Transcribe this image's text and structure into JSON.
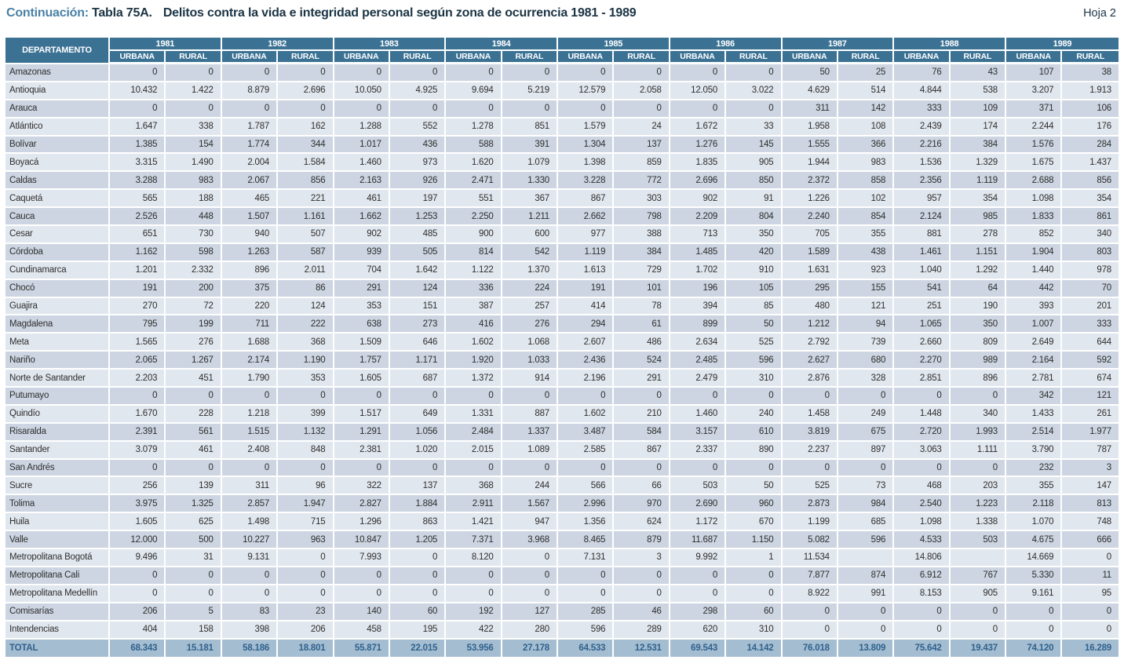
{
  "title": {
    "continuation_label": "Continuación:",
    "table_label": "Tabla 75A.",
    "title_text": "Delitos contra la vida e integridad personal según zona de ocurrencia 1981 - 1989",
    "page_label": "Hoja 2"
  },
  "table": {
    "department_header": "DEPARTAMENTO",
    "years": [
      "1981",
      "1982",
      "1983",
      "1984",
      "1985",
      "1986",
      "1987",
      "1988",
      "1989"
    ],
    "subheaders": [
      "URBANA",
      "RURAL"
    ],
    "rows": [
      {
        "name": "Amazonas",
        "values": [
          "0",
          "0",
          "0",
          "0",
          "0",
          "0",
          "0",
          "0",
          "0",
          "0",
          "0",
          "0",
          "50",
          "25",
          "76",
          "43",
          "107",
          "38"
        ]
      },
      {
        "name": "Antioquia",
        "values": [
          "10.432",
          "1.422",
          "8.879",
          "2.696",
          "10.050",
          "4.925",
          "9.694",
          "5.219",
          "12.579",
          "2.058",
          "12.050",
          "3.022",
          "4.629",
          "514",
          "4.844",
          "538",
          "3.207",
          "1.913"
        ]
      },
      {
        "name": "Arauca",
        "values": [
          "0",
          "0",
          "0",
          "0",
          "0",
          "0",
          "0",
          "0",
          "0",
          "0",
          "0",
          "0",
          "311",
          "142",
          "333",
          "109",
          "371",
          "106"
        ]
      },
      {
        "name": "Atlántico",
        "values": [
          "1.647",
          "338",
          "1.787",
          "162",
          "1.288",
          "552",
          "1.278",
          "851",
          "1.579",
          "24",
          "1.672",
          "33",
          "1.958",
          "108",
          "2.439",
          "174",
          "2.244",
          "176"
        ]
      },
      {
        "name": "Bolívar",
        "values": [
          "1.385",
          "154",
          "1.774",
          "344",
          "1.017",
          "436",
          "588",
          "391",
          "1.304",
          "137",
          "1.276",
          "145",
          "1.555",
          "366",
          "2.216",
          "384",
          "1.576",
          "284"
        ]
      },
      {
        "name": "Boyacá",
        "values": [
          "3.315",
          "1.490",
          "2.004",
          "1.584",
          "1.460",
          "973",
          "1.620",
          "1.079",
          "1.398",
          "859",
          "1.835",
          "905",
          "1.944",
          "983",
          "1.536",
          "1.329",
          "1.675",
          "1.437"
        ]
      },
      {
        "name": "Caldas",
        "values": [
          "3.288",
          "983",
          "2.067",
          "856",
          "2.163",
          "926",
          "2.471",
          "1.330",
          "3.228",
          "772",
          "2.696",
          "850",
          "2.372",
          "858",
          "2.356",
          "1.119",
          "2.688",
          "856"
        ]
      },
      {
        "name": "Caquetá",
        "values": [
          "565",
          "188",
          "465",
          "221",
          "461",
          "197",
          "551",
          "367",
          "867",
          "303",
          "902",
          "91",
          "1.226",
          "102",
          "957",
          "354",
          "1.098",
          "354"
        ]
      },
      {
        "name": "Cauca",
        "values": [
          "2.526",
          "448",
          "1.507",
          "1.161",
          "1.662",
          "1.253",
          "2.250",
          "1.211",
          "2.662",
          "798",
          "2.209",
          "804",
          "2.240",
          "854",
          "2.124",
          "985",
          "1.833",
          "861"
        ]
      },
      {
        "name": "Cesar",
        "values": [
          "651",
          "730",
          "940",
          "507",
          "902",
          "485",
          "900",
          "600",
          "977",
          "388",
          "713",
          "350",
          "705",
          "355",
          "881",
          "278",
          "852",
          "340"
        ]
      },
      {
        "name": "Córdoba",
        "values": [
          "1.162",
          "598",
          "1.263",
          "587",
          "939",
          "505",
          "814",
          "542",
          "1.119",
          "384",
          "1.485",
          "420",
          "1.589",
          "438",
          "1.461",
          "1.151",
          "1.904",
          "803"
        ]
      },
      {
        "name": "Cundinamarca",
        "values": [
          "1.201",
          "2.332",
          "896",
          "2.011",
          "704",
          "1.642",
          "1.122",
          "1.370",
          "1.613",
          "729",
          "1.702",
          "910",
          "1.631",
          "923",
          "1.040",
          "1.292",
          "1.440",
          "978"
        ]
      },
      {
        "name": "Chocó",
        "values": [
          "191",
          "200",
          "375",
          "86",
          "291",
          "124",
          "336",
          "224",
          "191",
          "101",
          "196",
          "105",
          "295",
          "155",
          "541",
          "64",
          "442",
          "70"
        ]
      },
      {
        "name": "Guajira",
        "values": [
          "270",
          "72",
          "220",
          "124",
          "353",
          "151",
          "387",
          "257",
          "414",
          "78",
          "394",
          "85",
          "480",
          "121",
          "251",
          "190",
          "393",
          "201"
        ]
      },
      {
        "name": "Magdalena",
        "values": [
          "795",
          "199",
          "711",
          "222",
          "638",
          "273",
          "416",
          "276",
          "294",
          "61",
          "899",
          "50",
          "1.212",
          "94",
          "1.065",
          "350",
          "1.007",
          "333"
        ]
      },
      {
        "name": "Meta",
        "values": [
          "1.565",
          "276",
          "1.688",
          "368",
          "1.509",
          "646",
          "1.602",
          "1.068",
          "2.607",
          "486",
          "2.634",
          "525",
          "2.792",
          "739",
          "2.660",
          "809",
          "2.649",
          "644"
        ]
      },
      {
        "name": "Nariño",
        "values": [
          "2.065",
          "1.267",
          "2.174",
          "1.190",
          "1.757",
          "1.171",
          "1.920",
          "1.033",
          "2.436",
          "524",
          "2.485",
          "596",
          "2.627",
          "680",
          "2.270",
          "989",
          "2.164",
          "592"
        ]
      },
      {
        "name": "Norte de Santander",
        "values": [
          "2.203",
          "451",
          "1.790",
          "353",
          "1.605",
          "687",
          "1.372",
          "914",
          "2.196",
          "291",
          "2.479",
          "310",
          "2.876",
          "328",
          "2.851",
          "896",
          "2.781",
          "674"
        ]
      },
      {
        "name": "Putumayo",
        "values": [
          "0",
          "0",
          "0",
          "0",
          "0",
          "0",
          "0",
          "0",
          "0",
          "0",
          "0",
          "0",
          "0",
          "0",
          "0",
          "0",
          "342",
          "121"
        ]
      },
      {
        "name": "Quindío",
        "values": [
          "1.670",
          "228",
          "1.218",
          "399",
          "1.517",
          "649",
          "1.331",
          "887",
          "1.602",
          "210",
          "1.460",
          "240",
          "1.458",
          "249",
          "1.448",
          "340",
          "1.433",
          "261"
        ]
      },
      {
        "name": "Risaralda",
        "values": [
          "2.391",
          "561",
          "1.515",
          "1.132",
          "1.291",
          "1.056",
          "2.484",
          "1.337",
          "3.487",
          "584",
          "3.157",
          "610",
          "3.819",
          "675",
          "2.720",
          "1.993",
          "2.514",
          "1.977"
        ]
      },
      {
        "name": "Santander",
        "values": [
          "3.079",
          "461",
          "2.408",
          "848",
          "2.381",
          "1.020",
          "2.015",
          "1.089",
          "2.585",
          "867",
          "2.337",
          "890",
          "2.237",
          "897",
          "3.063",
          "1.111",
          "3.790",
          "787"
        ]
      },
      {
        "name": "San Andrés",
        "values": [
          "0",
          "0",
          "0",
          "0",
          "0",
          "0",
          "0",
          "0",
          "0",
          "0",
          "0",
          "0",
          "0",
          "0",
          "0",
          "0",
          "232",
          "3"
        ]
      },
      {
        "name": "Sucre",
        "values": [
          "256",
          "139",
          "311",
          "96",
          "322",
          "137",
          "368",
          "244",
          "566",
          "66",
          "503",
          "50",
          "525",
          "73",
          "468",
          "203",
          "355",
          "147"
        ]
      },
      {
        "name": "Tolima",
        "values": [
          "3.975",
          "1.325",
          "2.857",
          "1.947",
          "2.827",
          "1.884",
          "2.911",
          "1.567",
          "2.996",
          "970",
          "2.690",
          "960",
          "2.873",
          "984",
          "2.540",
          "1.223",
          "2.118",
          "813"
        ]
      },
      {
        "name": "Huila",
        "values": [
          "1.605",
          "625",
          "1.498",
          "715",
          "1.296",
          "863",
          "1.421",
          "947",
          "1.356",
          "624",
          "1.172",
          "670",
          "1.199",
          "685",
          "1.098",
          "1.338",
          "1.070",
          "748"
        ]
      },
      {
        "name": "Valle",
        "values": [
          "12.000",
          "500",
          "10.227",
          "963",
          "10.847",
          "1.205",
          "7.371",
          "3.968",
          "8.465",
          "879",
          "11.687",
          "1.150",
          "5.082",
          "596",
          "4.533",
          "503",
          "4.675",
          "666"
        ]
      },
      {
        "name": "Metropolitana Bogotá",
        "values": [
          "9.496",
          "31",
          "9.131",
          "0",
          "7.993",
          "0",
          "8.120",
          "0",
          "7.131",
          "3",
          "9.992",
          "1",
          "11.534",
          "",
          "14.806",
          "",
          "14.669",
          "0"
        ]
      },
      {
        "name": "Metropolitana Cali",
        "values": [
          "0",
          "0",
          "0",
          "0",
          "0",
          "0",
          "0",
          "0",
          "0",
          "0",
          "0",
          "0",
          "7.877",
          "874",
          "6.912",
          "767",
          "5.330",
          "11"
        ]
      },
      {
        "name": "Metropolitana Medellín",
        "values": [
          "0",
          "0",
          "0",
          "0",
          "0",
          "0",
          "0",
          "0",
          "0",
          "0",
          "0",
          "0",
          "8.922",
          "991",
          "8.153",
          "905",
          "9.161",
          "95"
        ]
      },
      {
        "name": "Comisarías",
        "values": [
          "206",
          "5",
          "83",
          "23",
          "140",
          "60",
          "192",
          "127",
          "285",
          "46",
          "298",
          "60",
          "0",
          "0",
          "0",
          "0",
          "0",
          "0"
        ]
      },
      {
        "name": "Intendencias",
        "values": [
          "404",
          "158",
          "398",
          "206",
          "458",
          "195",
          "422",
          "280",
          "596",
          "289",
          "620",
          "310",
          "0",
          "0",
          "0",
          "0",
          "0",
          "0"
        ]
      }
    ],
    "total_row": {
      "name": "TOTAL",
      "values": [
        "68.343",
        "15.181",
        "58.186",
        "18.801",
        "55.871",
        "22.015",
        "53.956",
        "27.178",
        "64.533",
        "12.531",
        "69.543",
        "14.142",
        "76.018",
        "13.809",
        "75.642",
        "19.437",
        "74.120",
        "16.289"
      ]
    }
  }
}
